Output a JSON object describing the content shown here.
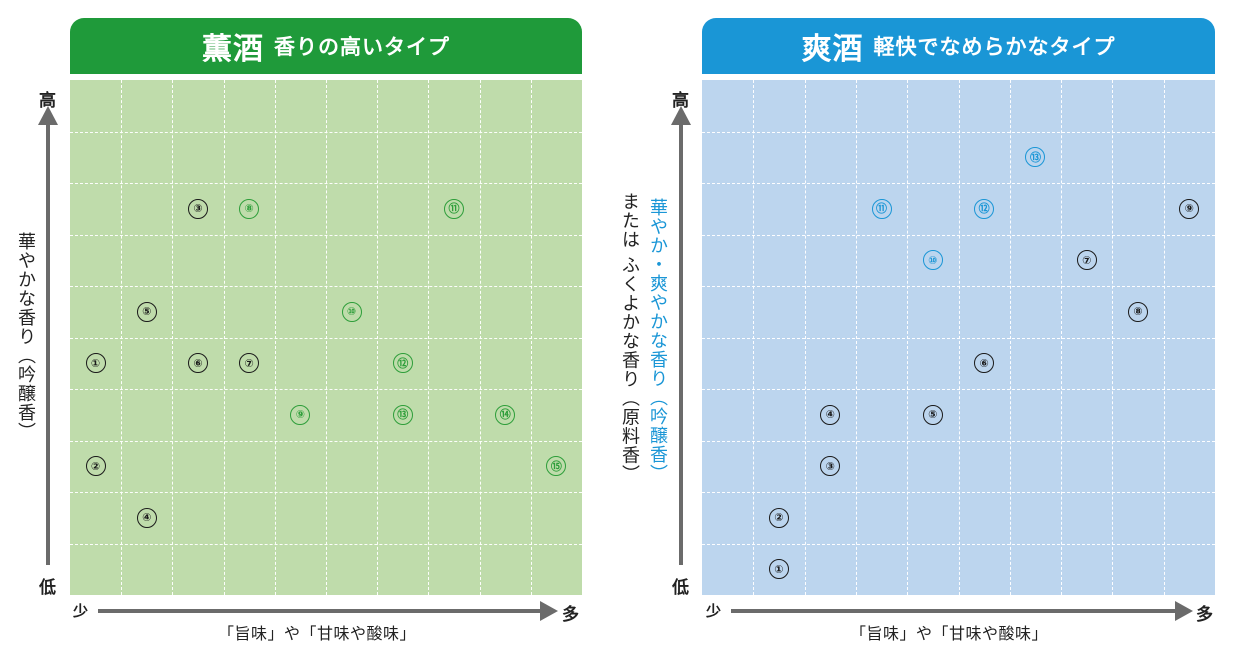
{
  "panels": [
    {
      "id": "kunshu",
      "title_main": "薫酒",
      "title_sub": "香りの高いタイプ",
      "header_color": "#1f9a3a",
      "grid_color": "#bfdcab",
      "marker_color": "#1a1a1a",
      "accent_marker_color": "#2e9e3a",
      "y_high": "高",
      "y_low": "低",
      "x_low": "少",
      "x_high": "多",
      "xlabel": "「旨味」や「甘味や酸味」",
      "ylabel": "華やかな香り（吟醸香）",
      "ylabel_secondary": ""
    },
    {
      "id": "soushu",
      "title_main": "爽酒",
      "title_sub": "軽快でなめらかなタイプ",
      "header_color": "#1a96d6",
      "grid_color": "#bcd5ee",
      "marker_color": "#1a1a1a",
      "accent_marker_color": "#1a96d6",
      "y_high": "高",
      "y_low": "低",
      "x_low": "少",
      "x_high": "多",
      "xlabel": "「旨味」や「甘味や酸味」",
      "ylabel": "華やか・爽やかな香り（吟醸香）",
      "ylabel_secondary": "または ふくよかな香り（原料香）"
    }
  ],
  "chart_data": [
    {
      "type": "scatter",
      "title": "薫酒 香りの高いタイプ",
      "xlabel": "「旨味」や「甘味や酸味」",
      "ylabel": "華やかな香り（吟醸香）",
      "xlim": [
        0,
        10
      ],
      "ylim": [
        0,
        10
      ],
      "x_tick_labels": [
        "少",
        "多"
      ],
      "y_tick_labels": [
        "低",
        "高"
      ],
      "grid": true,
      "points": [
        {
          "label": "①",
          "x": 0.5,
          "y": 4.5,
          "accent": false
        },
        {
          "label": "②",
          "x": 0.5,
          "y": 2.5,
          "accent": false
        },
        {
          "label": "③",
          "x": 2.5,
          "y": 7.5,
          "accent": false
        },
        {
          "label": "④",
          "x": 1.5,
          "y": 1.5,
          "accent": false
        },
        {
          "label": "⑤",
          "x": 1.5,
          "y": 5.5,
          "accent": false
        },
        {
          "label": "⑥",
          "x": 2.5,
          "y": 4.5,
          "accent": false
        },
        {
          "label": "⑦",
          "x": 3.5,
          "y": 4.5,
          "accent": false
        },
        {
          "label": "⑧",
          "x": 3.5,
          "y": 7.5,
          "accent": true
        },
        {
          "label": "⑨",
          "x": 4.5,
          "y": 3.5,
          "accent": true
        },
        {
          "label": "⑩",
          "x": 5.5,
          "y": 5.5,
          "accent": true
        },
        {
          "label": "⑪",
          "x": 7.5,
          "y": 7.5,
          "accent": true
        },
        {
          "label": "⑫",
          "x": 6.5,
          "y": 4.5,
          "accent": true
        },
        {
          "label": "⑬",
          "x": 6.5,
          "y": 3.5,
          "accent": true
        },
        {
          "label": "⑭",
          "x": 8.5,
          "y": 3.5,
          "accent": true
        },
        {
          "label": "⑮",
          "x": 9.5,
          "y": 2.5,
          "accent": true
        }
      ]
    },
    {
      "type": "scatter",
      "title": "爽酒 軽快でなめらかなタイプ",
      "xlabel": "「旨味」や「甘味や酸味」",
      "ylabel": "華やか・爽やかな香り（吟醸香） または ふくよかな香り（原料香）",
      "xlim": [
        0,
        10
      ],
      "ylim": [
        0,
        10
      ],
      "x_tick_labels": [
        "少",
        "多"
      ],
      "y_tick_labels": [
        "低",
        "高"
      ],
      "grid": true,
      "points": [
        {
          "label": "①",
          "x": 1.5,
          "y": 0.5,
          "accent": false
        },
        {
          "label": "②",
          "x": 1.5,
          "y": 1.5,
          "accent": false
        },
        {
          "label": "③",
          "x": 2.5,
          "y": 2.5,
          "accent": false
        },
        {
          "label": "④",
          "x": 2.5,
          "y": 3.5,
          "accent": false
        },
        {
          "label": "⑤",
          "x": 4.5,
          "y": 3.5,
          "accent": false
        },
        {
          "label": "⑥",
          "x": 5.5,
          "y": 4.5,
          "accent": false
        },
        {
          "label": "⑦",
          "x": 7.5,
          "y": 6.5,
          "accent": false
        },
        {
          "label": "⑧",
          "x": 8.5,
          "y": 5.5,
          "accent": false
        },
        {
          "label": "⑨",
          "x": 9.5,
          "y": 7.5,
          "accent": false
        },
        {
          "label": "⑩",
          "x": 4.5,
          "y": 6.5,
          "accent": true
        },
        {
          "label": "⑪",
          "x": 3.5,
          "y": 7.5,
          "accent": true
        },
        {
          "label": "⑫",
          "x": 5.5,
          "y": 7.5,
          "accent": true
        },
        {
          "label": "⑬",
          "x": 6.5,
          "y": 8.5,
          "accent": true
        }
      ]
    }
  ]
}
